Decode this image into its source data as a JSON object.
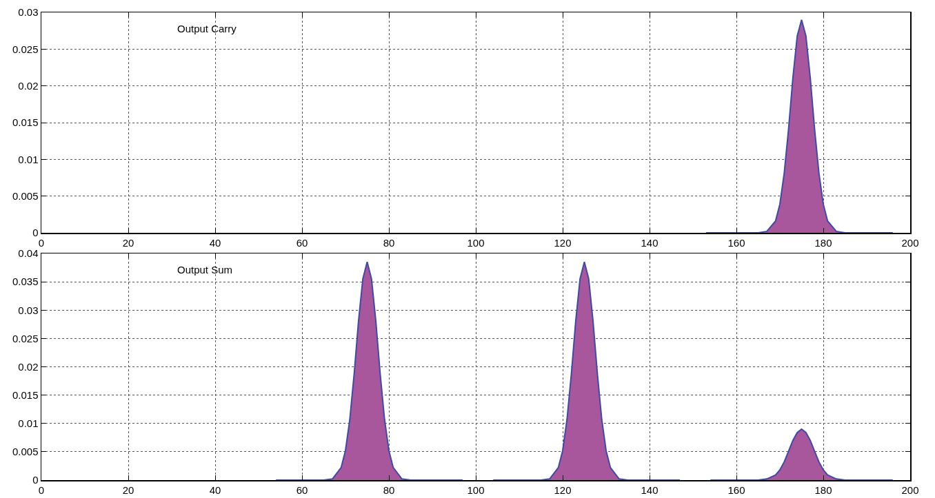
{
  "chart_data": [
    {
      "type": "area",
      "annotations": [
        "Output Carry"
      ],
      "xlim": [
        0,
        200
      ],
      "xticks": [
        0,
        20,
        40,
        60,
        80,
        100,
        120,
        140,
        160,
        180,
        200
      ],
      "ylim": [
        0,
        0.03
      ],
      "yticks": [
        0,
        0.005,
        0.01,
        0.015,
        0.02,
        0.025,
        0.03
      ],
      "grid": true,
      "line_style": "solid",
      "series": [
        {
          "color": "#a8579c",
          "x": [
            153,
            165,
            167,
            169,
            170,
            171,
            172,
            173,
            174,
            175,
            176,
            177,
            178,
            179,
            180,
            181,
            183,
            185,
            196
          ],
          "values": [
            0,
            0,
            0.0002,
            0.0016,
            0.0039,
            0.0081,
            0.0141,
            0.0211,
            0.0268,
            0.029,
            0.0268,
            0.0211,
            0.0141,
            0.0081,
            0.0039,
            0.0016,
            0.0002,
            0,
            0
          ]
        }
      ]
    },
    {
      "type": "area",
      "annotations": [
        "Output Sum"
      ],
      "xlim": [
        0,
        200
      ],
      "xticks": [
        0,
        20,
        40,
        60,
        80,
        100,
        120,
        140,
        160,
        180,
        200
      ],
      "ylim": [
        0,
        0.04
      ],
      "yticks": [
        0,
        0.005,
        0.01,
        0.015,
        0.02,
        0.025,
        0.03,
        0.035,
        0.04
      ],
      "grid": true,
      "line_style": "solid",
      "series": [
        {
          "color": "#a8579c",
          "x": [
            54,
            65,
            67,
            69,
            70,
            71,
            72,
            73,
            74,
            75,
            76,
            77,
            78,
            79,
            80,
            81,
            83,
            85,
            97
          ],
          "values": [
            0,
            0,
            0.0002,
            0.0022,
            0.0052,
            0.0107,
            0.0187,
            0.028,
            0.0355,
            0.0385,
            0.0355,
            0.028,
            0.0187,
            0.0107,
            0.0052,
            0.0022,
            0.0002,
            0,
            0
          ]
        },
        {
          "color": "#a8579c",
          "x": [
            104,
            115,
            117,
            119,
            120,
            121,
            122,
            123,
            124,
            125,
            126,
            127,
            128,
            129,
            130,
            131,
            133,
            135,
            147
          ],
          "values": [
            0,
            0,
            0.0002,
            0.0022,
            0.0052,
            0.0107,
            0.0187,
            0.028,
            0.0355,
            0.0385,
            0.0355,
            0.028,
            0.0187,
            0.0107,
            0.0052,
            0.0022,
            0.0002,
            0,
            0
          ]
        },
        {
          "color": "#a8579c",
          "x": [
            154,
            165,
            167,
            169,
            170,
            171,
            172,
            173,
            174,
            175,
            176,
            177,
            178,
            179,
            180,
            181,
            183,
            185,
            196
          ],
          "values": [
            0,
            0,
            0.0002,
            0.0009,
            0.0018,
            0.0032,
            0.0051,
            0.007,
            0.0084,
            0.009,
            0.0084,
            0.007,
            0.0051,
            0.0032,
            0.0018,
            0.0009,
            0.0002,
            0,
            0
          ]
        }
      ]
    }
  ]
}
